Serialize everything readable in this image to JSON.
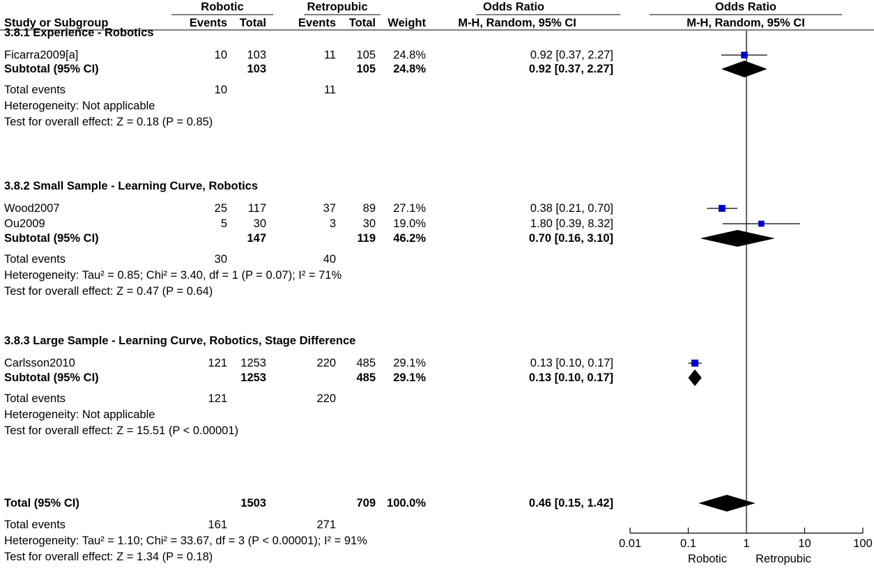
{
  "header": {
    "group1": "Robotic",
    "group2": "Retropubic",
    "or_left": "Odds Ratio",
    "or_right": "Odds Ratio",
    "col_study": "Study or Subgroup",
    "col_events1": "Events",
    "col_total1": "Total",
    "col_events2": "Events",
    "col_total2": "Total",
    "col_weight": "Weight",
    "col_ci_left": "M-H, Random, 95% CI",
    "col_ci_right": "M-H, Random, 95% CI"
  },
  "subgroups": [
    {
      "title": "3.8.1 Experience - Robotics",
      "studies": [
        {
          "name": "Ficarra2009[a]",
          "e1": "10",
          "t1": "103",
          "e2": "11",
          "t2": "105",
          "weight": "24.8%",
          "ci": "0.92 [0.37, 2.27]"
        }
      ],
      "subtotal": {
        "label": "Subtotal (95% CI)",
        "t1": "103",
        "t2": "105",
        "weight": "24.8%",
        "ci": "0.92 [0.37, 2.27]"
      },
      "events": {
        "label": "Total events",
        "e1": "10",
        "e2": "11"
      },
      "heterogeneity": "Heterogeneity: Not applicable",
      "overall": "Test for overall effect: Z = 0.18 (P = 0.85)"
    },
    {
      "title": "3.8.2 Small Sample - Learning Curve, Robotics",
      "studies": [
        {
          "name": "Wood2007",
          "e1": "25",
          "t1": "117",
          "e2": "37",
          "t2": "89",
          "weight": "27.1%",
          "ci": "0.38 [0.21, 0.70]"
        },
        {
          "name": "Ou2009",
          "e1": "5",
          "t1": "30",
          "e2": "3",
          "t2": "30",
          "weight": "19.0%",
          "ci": "1.80 [0.39, 8.32]"
        }
      ],
      "subtotal": {
        "label": "Subtotal (95% CI)",
        "t1": "147",
        "t2": "119",
        "weight": "46.2%",
        "ci": "0.70 [0.16, 3.10]"
      },
      "events": {
        "label": "Total events",
        "e1": "30",
        "e2": "40"
      },
      "heterogeneity": "Heterogeneity: Tau² = 0.85; Chi² = 3.40, df = 1 (P = 0.07); I² = 71%",
      "overall": "Test for overall effect: Z = 0.47 (P = 0.64)"
    },
    {
      "title": "3.8.3 Large Sample - Learning Curve, Robotics, Stage Difference",
      "studies": [
        {
          "name": "Carlsson2010",
          "e1": "121",
          "t1": "1253",
          "e2": "220",
          "t2": "485",
          "weight": "29.1%",
          "ci": "0.13 [0.10, 0.17]"
        }
      ],
      "subtotal": {
        "label": "Subtotal (95% CI)",
        "t1": "1253",
        "t2": "485",
        "weight": "29.1%",
        "ci": "0.13 [0.10, 0.17]"
      },
      "events": {
        "label": "Total events",
        "e1": "121",
        "e2": "220"
      },
      "heterogeneity": "Heterogeneity: Not applicable",
      "overall": "Test for overall effect: Z = 15.51 (P < 0.00001)"
    }
  ],
  "total": {
    "label": "Total (95% CI)",
    "t1": "1503",
    "t2": "709",
    "weight": "100.0%",
    "ci": "0.46 [0.15, 1.42]",
    "events": {
      "label": "Total events",
      "e1": "161",
      "e2": "271"
    },
    "heterogeneity": "Heterogeneity: Tau² = 1.10; Chi² = 33.67, df = 3 (P < 0.00001); I² = 91%",
    "overall": "Test for overall effect: Z = 1.34 (P = 0.18)"
  },
  "axis": {
    "ticks": [
      "0.01",
      "0.1",
      "1",
      "10",
      "100"
    ],
    "favours_left": "Robotic",
    "favours_right": "Retropubic"
  },
  "colors": {
    "marker": "#0000cc",
    "diamond": "#000000",
    "line": "#000000"
  },
  "chart_data": {
    "type": "forest",
    "scale": "log",
    "xlim": [
      0.01,
      100
    ],
    "reference_line": 1,
    "studies": [
      {
        "name": "Ficarra2009[a]",
        "or": 0.92,
        "lo": 0.37,
        "hi": 2.27,
        "weight": 24.8
      },
      {
        "name": "Wood2007",
        "or": 0.38,
        "lo": 0.21,
        "hi": 0.7,
        "weight": 27.1
      },
      {
        "name": "Ou2009",
        "or": 1.8,
        "lo": 0.39,
        "hi": 8.32,
        "weight": 19.0
      },
      {
        "name": "Carlsson2010",
        "or": 0.13,
        "lo": 0.1,
        "hi": 0.17,
        "weight": 29.1
      }
    ],
    "pooled": [
      {
        "name": "Subtotal 3.8.1",
        "or": 0.92,
        "lo": 0.37,
        "hi": 2.27
      },
      {
        "name": "Subtotal 3.8.2",
        "or": 0.7,
        "lo": 0.16,
        "hi": 3.1
      },
      {
        "name": "Subtotal 3.8.3",
        "or": 0.13,
        "lo": 0.1,
        "hi": 0.17
      },
      {
        "name": "Total",
        "or": 0.46,
        "lo": 0.15,
        "hi": 1.42
      }
    ]
  }
}
